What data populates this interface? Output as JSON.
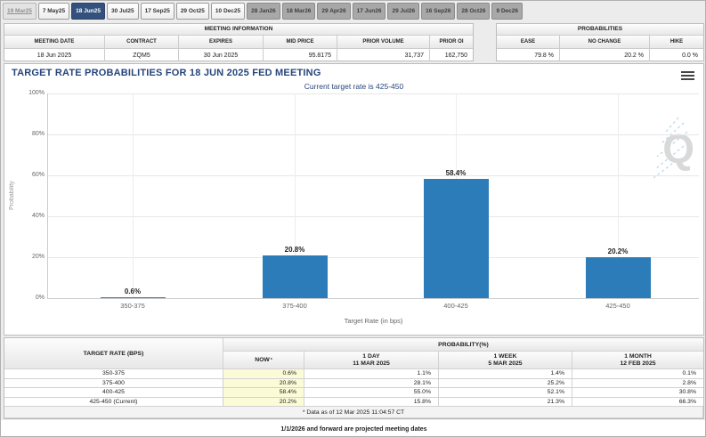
{
  "tabs": [
    {
      "label": "19 Mar25",
      "state": "disabled"
    },
    {
      "label": "7 May25",
      "state": "normal"
    },
    {
      "label": "18 Jun25",
      "state": "selected"
    },
    {
      "label": "30 Jul25",
      "state": "normal"
    },
    {
      "label": "17 Sep25",
      "state": "normal"
    },
    {
      "label": "29 Oct25",
      "state": "normal"
    },
    {
      "label": "10 Dec25",
      "state": "normal"
    },
    {
      "label": "28 Jan26",
      "state": "future"
    },
    {
      "label": "18 Mar26",
      "state": "future"
    },
    {
      "label": "29 Apr26",
      "state": "future"
    },
    {
      "label": "17 Jun26",
      "state": "future"
    },
    {
      "label": "29 Jul26",
      "state": "future"
    },
    {
      "label": "16 Sep26",
      "state": "future"
    },
    {
      "label": "28 Oct26",
      "state": "future"
    },
    {
      "label": "9 Dec26",
      "state": "future"
    }
  ],
  "meeting_info": {
    "title": "MEETING INFORMATION",
    "columns": [
      "MEETING DATE",
      "CONTRACT",
      "EXPIRES",
      "MID PRICE",
      "PRIOR VOLUME",
      "PRIOR OI"
    ],
    "values": [
      "18 Jun 2025",
      "ZQM5",
      "30 Jun 2025",
      "95.8175",
      "31,737",
      "162,750"
    ]
  },
  "probabilities_summary": {
    "title": "PROBABILITIES",
    "columns": [
      "EASE",
      "NO CHANGE",
      "HIKE"
    ],
    "values": [
      "79.8 %",
      "20.2 %",
      "0.0 %"
    ]
  },
  "chart_data": {
    "type": "bar",
    "title": "TARGET RATE PROBABILITIES FOR 18 JUN 2025 FED MEETING",
    "subtitle": "Current target rate is 425-450",
    "categories": [
      "350-375",
      "375-400",
      "400-425",
      "425-450"
    ],
    "values": [
      0.6,
      20.8,
      58.4,
      20.2
    ],
    "labels": [
      "0.6%",
      "20.8%",
      "58.4%",
      "20.2%"
    ],
    "xlabel": "Target Rate (in bps)",
    "ylabel": "Probability",
    "ylim": [
      0,
      100
    ],
    "yticks": [
      "0%",
      "20%",
      "40%",
      "60%",
      "80%",
      "100%"
    ],
    "bar_color": "#2b7cb9",
    "grid": true,
    "legend": "none",
    "watermark": "Q"
  },
  "prob_table": {
    "col1_header": "TARGET RATE (BPS)",
    "group_header": "PROBABILITY(%)",
    "sub_headers": [
      {
        "line1": "NOW",
        "asterisk": "*",
        "line2": ""
      },
      {
        "line1": "1 DAY",
        "line2": "11 MAR 2025"
      },
      {
        "line1": "1 WEEK",
        "line2": "5 MAR 2025"
      },
      {
        "line1": "1 MONTH",
        "line2": "12 FEB 2025"
      }
    ],
    "rows": [
      {
        "rate": "350-375",
        "now": "0.6%",
        "day": "1.1%",
        "week": "1.4%",
        "month": "0.1%"
      },
      {
        "rate": "375-400",
        "now": "20.8%",
        "day": "28.1%",
        "week": "25.2%",
        "month": "2.8%"
      },
      {
        "rate": "400-425",
        "now": "58.4%",
        "day": "55.0%",
        "week": "52.1%",
        "month": "30.8%"
      },
      {
        "rate": "425-450 (Current)",
        "now": "20.2%",
        "day": "15.8%",
        "week": "21.3%",
        "month": "66.3%"
      }
    ],
    "footnote": "* Data as of 12 Mar 2025 11:04:57 CT"
  },
  "footer_note": "1/1/2026 and forward are projected meeting dates",
  "colors": {
    "accent_navy": "#33517c",
    "title_navy": "#26457c",
    "bar_blue": "#2b7cb9",
    "now_highlight": "#fbfbd8",
    "future_tab_grey": "#a8a8a8"
  }
}
